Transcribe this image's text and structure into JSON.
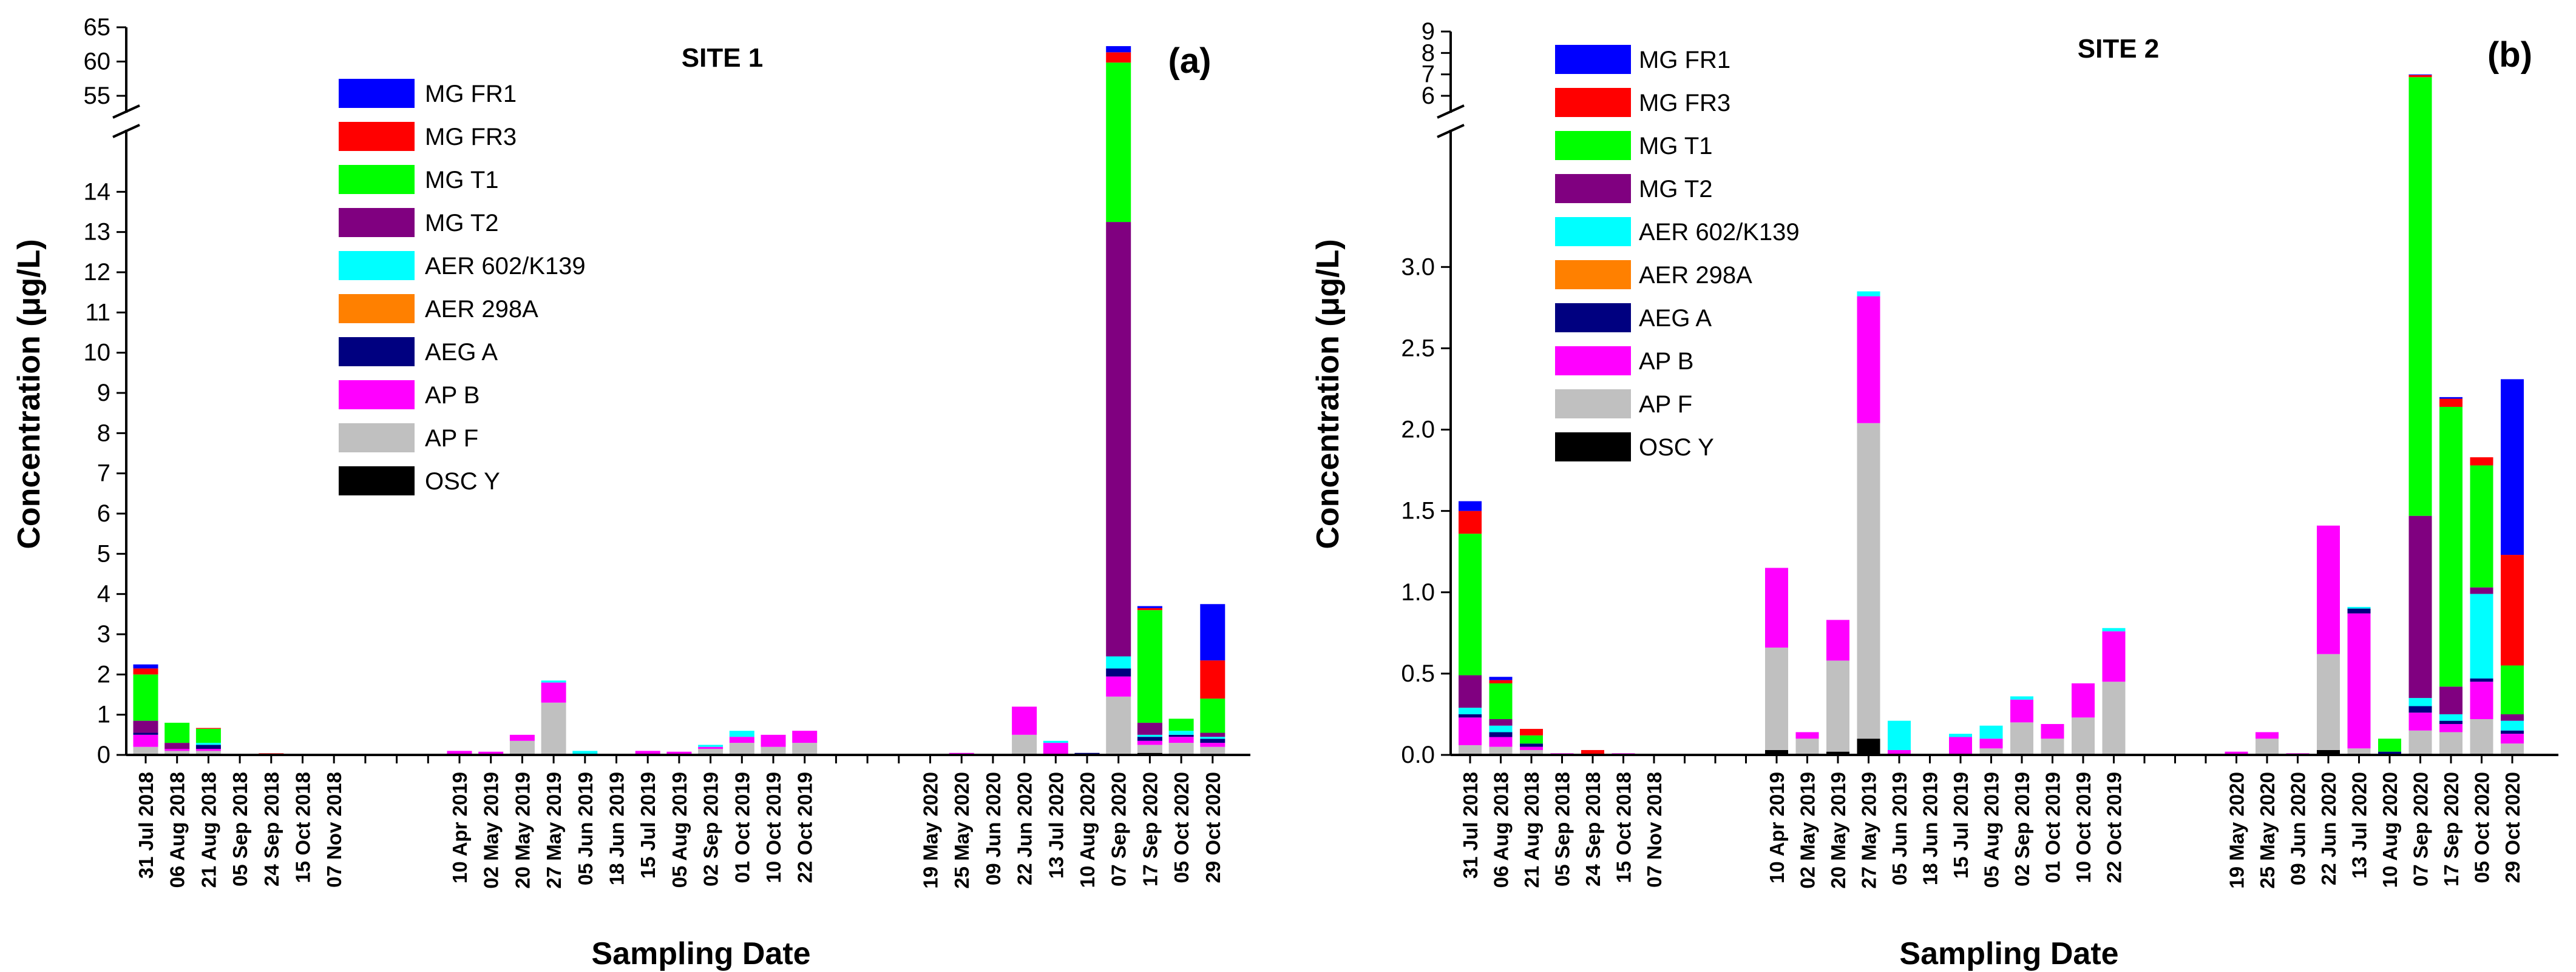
{
  "chart_data": [
    {
      "type": "bar",
      "stacked": true,
      "panel_label": "(a)",
      "title": "SITE 1",
      "xlabel": "Sampling Date",
      "ylabel": "Concentration (μg/L)",
      "y_break": {
        "lower_range": [
          0,
          15
        ],
        "upper_range": [
          55,
          65
        ]
      },
      "lower_ticks": [
        "0",
        "1",
        "2",
        "3",
        "4",
        "5",
        "6",
        "7",
        "8",
        "9",
        "10",
        "11",
        "12",
        "13",
        "14"
      ],
      "upper_ticks": [
        "55",
        "60",
        "65"
      ],
      "legend": [
        "MG FR1",
        "MG FR3",
        "MG T1",
        "MG T2",
        "AER 602/K139",
        "AER 298A",
        "AEG A",
        "AP B",
        "AP F",
        "OSC Y"
      ],
      "stack_order": [
        "OSC Y",
        "AP F",
        "AP B",
        "AEG A",
        "AER 298A",
        "AER 602/K139",
        "MG T2",
        "MG T1",
        "MG FR3",
        "MG FR1"
      ],
      "colors": {
        "MG FR1": "#0000ff",
        "MG FR3": "#ff0000",
        "MG T1": "#00ff00",
        "MG T2": "#800080",
        "AER 602/K139": "#00ffff",
        "AER 298A": "#ff8000",
        "AEG A": "#000080",
        "AP B": "#ff00ff",
        "AP F": "#c0c0c0",
        "OSC Y": "#000000"
      },
      "categories": [
        "31 Jul 2018",
        "06 Aug 2018",
        "21 Aug 2018",
        "05 Sep 2018",
        "24 Sep 2018",
        "15 Oct 2018",
        "07 Nov 2018",
        "",
        "",
        "",
        "10 Apr 2019",
        "02 May 2019",
        "20 May 2019",
        "27 May 2019",
        "05 Jun 2019",
        "18 Jun 2019",
        "15 Jul 2019",
        "05 Aug 2019",
        "02 Sep 2019",
        "01 Oct 2019",
        "10 Oct 2019",
        "22 Oct 2019",
        "",
        "",
        "",
        "19 May 2020",
        "25 May 2020",
        "09 Jun 2020",
        "22 Jun 2020",
        "13 Jul 2020",
        "10 Aug 2020",
        "07 Sep 2020",
        "17 Sep 2020",
        "05 Oct 2020",
        "29 Oct 2020"
      ],
      "values": [
        {
          "OSC Y": 0,
          "AP F": 0.2,
          "AP B": 0.3,
          "AEG A": 0.05,
          "AER 298A": 0,
          "AER 602/K139": 0,
          "MG T2": 0.3,
          "MG T1": 1.15,
          "MG FR3": 0.15,
          "MG FR1": 0.1
        },
        {
          "AP F": 0.1,
          "AP B": 0.05,
          "AEG A": 0,
          "AER 602/K139": 0,
          "MG T2": 0.15,
          "MG T1": 0.5,
          "MG FR3": 0,
          "MG FR1": 0
        },
        {
          "AP F": 0.1,
          "AP B": 0.05,
          "AEG A": 0.1,
          "AER 602/K139": 0.05,
          "MG T2": 0,
          "MG T1": 0.35,
          "MG FR3": 0.02,
          "MG FR1": 0
        },
        {},
        {
          "MG FR3": 0.04
        },
        {},
        {},
        null,
        null,
        null,
        {
          "AP B": 0.1
        },
        {
          "AP B": 0.08
        },
        {
          "AP F": 0.35,
          "AP B": 0.15
        },
        {
          "AP F": 1.3,
          "AP B": 0.5,
          "AER 602/K139": 0.05
        },
        {
          "AER 602/K139": 0.1
        },
        {},
        {
          "AP B": 0.1
        },
        {
          "AP B": 0.08
        },
        {
          "AP F": 0.15,
          "AP B": 0.05,
          "AER 602/K139": 0.05
        },
        {
          "AP F": 0.3,
          "AP B": 0.15,
          "AER 602/K139": 0.15
        },
        {
          "AP F": 0.2,
          "AP B": 0.3
        },
        {
          "AP F": 0.3,
          "AP B": 0.3
        },
        null,
        null,
        null,
        {
          "AP B": 0.03
        },
        {
          "AP B": 0.05
        },
        {
          "AP B": 0.02
        },
        {
          "AP F": 0.5,
          "AP B": 0.7
        },
        {
          "AP B": 0.3,
          "AER 602/K139": 0.05
        },
        {
          "AEG A": 0.05
        },
        {
          "OSC Y": 0,
          "AP F": 1.45,
          "AP B": 0.5,
          "AEG A": 0.2,
          "AER 602/K139": 0.3,
          "MG T2": 10.8,
          "MG T1": 46.6,
          "MG FR3": 1.5,
          "MG FR1": 0.9
        },
        {
          "OSC Y": 0.05,
          "AP F": 0.2,
          "AP B": 0.1,
          "AEG A": 0.1,
          "AER 602/K139": 0.05,
          "MG T2": 0.3,
          "MG T1": 2.8,
          "MG FR3": 0.05,
          "MG FR1": 0.05
        },
        {
          "AP F": 0.3,
          "AP B": 0.15,
          "AEG A": 0.05,
          "AER 602/K139": 0.1,
          "MG T2": 0,
          "MG T1": 0.3,
          "MG FR3": 0,
          "MG FR1": 0
        },
        {
          "AP F": 0.2,
          "AP B": 0.1,
          "AEG A": 0.1,
          "AER 602/K139": 0.05,
          "MG T2": 0.1,
          "MG T1": 0.85,
          "MG FR3": 0.95,
          "MG FR1": 1.4
        }
      ]
    },
    {
      "type": "bar",
      "stacked": true,
      "panel_label": "(b)",
      "title": "SITE 2",
      "xlabel": "Sampling Date",
      "ylabel": "Concentration (μg/L)",
      "y_break": {
        "lower_range": [
          0,
          3.5
        ],
        "upper_range": [
          6,
          9
        ]
      },
      "lower_ticks": [
        "0.0",
        "0.5",
        "1.0",
        "1.5",
        "2.0",
        "2.5",
        "3.0"
      ],
      "upper_ticks": [
        "6",
        "7",
        "8",
        "9"
      ],
      "legend": [
        "MG FR1",
        "MG FR3",
        "MG T1",
        "MG T2",
        "AER 602/K139",
        "AER 298A",
        "AEG A",
        "AP B",
        "AP F",
        "OSC Y"
      ],
      "stack_order": [
        "OSC Y",
        "AP F",
        "AP B",
        "AEG A",
        "AER 298A",
        "AER 602/K139",
        "MG T2",
        "MG T1",
        "MG FR3",
        "MG FR1"
      ],
      "colors": {
        "MG FR1": "#0000ff",
        "MG FR3": "#ff0000",
        "MG T1": "#00ff00",
        "MG T2": "#800080",
        "AER 602/K139": "#00ffff",
        "AER 298A": "#ff8000",
        "AEG A": "#000080",
        "AP B": "#ff00ff",
        "AP F": "#c0c0c0",
        "OSC Y": "#000000"
      },
      "categories": [
        "31 Jul 2018",
        "06 Aug 2018",
        "21 Aug 2018",
        "05 Sep 2018",
        "24 Sep 2018",
        "15 Oct 2018",
        "07 Nov 2018",
        "",
        "",
        "",
        "10 Apr 2019",
        "02 May 2019",
        "20 May 2019",
        "27 May 2019",
        "05 Jun 2019",
        "18 Jun 2019",
        "15 Jul 2019",
        "05 Aug 2019",
        "02 Sep 2019",
        "01 Oct 2019",
        "10 Oct 2019",
        "22 Oct 2019",
        "",
        "",
        "",
        "19 May 2020",
        "25 May 2020",
        "09 Jun 2020",
        "22 Jun 2020",
        "13 Jul 2020",
        "10 Aug 2020",
        "07 Sep 2020",
        "17 Sep 2020",
        "05 Oct 2020",
        "29 Oct 2020"
      ],
      "values": [
        {
          "AP F": 0.06,
          "AP B": 0.17,
          "AEG A": 0.02,
          "AER 602/K139": 0.04,
          "MG T2": 0.2,
          "MG T1": 0.87,
          "MG FR3": 0.14,
          "MG FR1": 0.06
        },
        {
          "AP F": 0.05,
          "AP B": 0.06,
          "AEG A": 0.03,
          "AER 602/K139": 0.04,
          "MG T2": 0.04,
          "MG T1": 0.22,
          "MG FR3": 0.02,
          "MG FR1": 0.02
        },
        {
          "AP F": 0.03,
          "AP B": 0.02,
          "AEG A": 0.02,
          "MG T1": 0.05,
          "MG FR3": 0.04
        },
        {
          "AP B": 0.01
        },
        {
          "MG FR3": 0.03
        },
        {
          "AP B": 0.01
        },
        {},
        null,
        null,
        null,
        {
          "OSC Y": 0.03,
          "AP F": 0.63,
          "AP B": 0.49
        },
        {
          "AP F": 0.1,
          "AP B": 0.04
        },
        {
          "OSC Y": 0.02,
          "AP F": 0.56,
          "AP B": 0.25
        },
        {
          "OSC Y": 0.1,
          "AP F": 1.94,
          "AP B": 0.78,
          "AER 602/K139": 0.03
        },
        {
          "AP B": 0.03,
          "AER 602/K139": 0.18
        },
        {},
        {
          "AP B": 0.11,
          "AER 602/K139": 0.02
        },
        {
          "AP F": 0.04,
          "AP B": 0.06,
          "AER 602/K139": 0.08
        },
        {
          "AP F": 0.2,
          "AP B": 0.14,
          "AER 602/K139": 0.02
        },
        {
          "AP F": 0.1,
          "AP B": 0.09
        },
        {
          "AP F": 0.23,
          "AP B": 0.21
        },
        {
          "AP F": 0.45,
          "AP B": 0.31,
          "AER 602/K139": 0.02
        },
        null,
        null,
        null,
        {
          "AP B": 0.02
        },
        {
          "AP F": 0.1,
          "AP B": 0.04
        },
        {
          "AP B": 0.01
        },
        {
          "OSC Y": 0.03,
          "AP F": 0.59,
          "AP B": 0.79
        },
        {
          "AP F": 0.04,
          "AP B": 0.83,
          "AEG A": 0.03,
          "AER 602/K139": 0.01
        },
        {
          "AEG A": 0.02,
          "MG T1": 0.08
        },
        {
          "AP F": 0.15,
          "AP B": 0.11,
          "AEG A": 0.04,
          "AER 602/K139": 0.05,
          "MG T2": 1.12,
          "MG T1": 5.4,
          "MG FR3": 0.1,
          "MG FR1": 0.03
        },
        {
          "AP F": 0.14,
          "AP B": 0.05,
          "AEG A": 0.02,
          "AER 602/K139": 0.04,
          "MG T2": 0.17,
          "MG T1": 1.72,
          "MG FR3": 0.05,
          "MG FR1": 0.01
        },
        {
          "AP F": 0.22,
          "AP B": 0.23,
          "AEG A": 0.02,
          "AER 602/K139": 0.52,
          "MG T2": 0.04,
          "MG T1": 0.75,
          "MG FR3": 0.05
        },
        {
          "AP F": 0.07,
          "AP B": 0.06,
          "AEG A": 0.02,
          "AER 602/K139": 0.06,
          "MG T2": 0.04,
          "MG T1": 0.3,
          "MG FR3": 0.68,
          "MG FR1": 1.08
        }
      ]
    }
  ]
}
